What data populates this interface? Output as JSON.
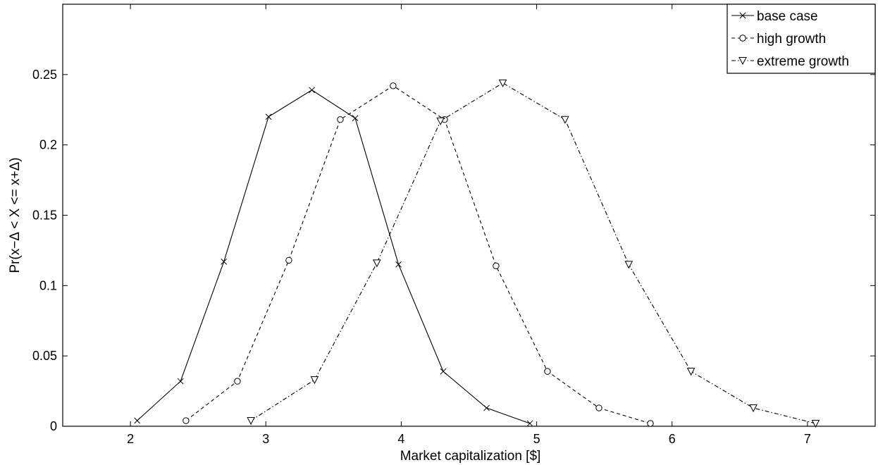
{
  "chart_data": {
    "type": "line",
    "xlabel": "Market capitalization [$]",
    "ylabel": "Pr(x−Δ < X <= x+Δ)",
    "xlim": [
      1.5,
      7.5
    ],
    "ylim": [
      0,
      0.3
    ],
    "xticks": [
      "2",
      "3",
      "4",
      "5",
      "6",
      "7"
    ],
    "yticks": [
      "0",
      "0.05",
      "0.1",
      "0.15",
      "0.2",
      "0.25"
    ],
    "grid": false,
    "legend_position": "top-right",
    "series": [
      {
        "name": "base case",
        "line_style": "solid",
        "marker": "x",
        "color": "#000000",
        "x": [
          2.05,
          2.37,
          2.69,
          3.02,
          3.34,
          3.66,
          3.98,
          4.31,
          4.63,
          4.95
        ],
        "y": [
          0.004,
          0.032,
          0.117,
          0.22,
          0.239,
          0.219,
          0.115,
          0.039,
          0.013,
          0.002
        ]
      },
      {
        "name": "high growth",
        "line_style": "dashed",
        "marker": "circle",
        "color": "#000000",
        "x": [
          2.41,
          2.79,
          3.17,
          3.55,
          3.94,
          4.32,
          4.7,
          5.08,
          5.46,
          5.84
        ],
        "y": [
          0.004,
          0.032,
          0.118,
          0.218,
          0.242,
          0.218,
          0.114,
          0.039,
          0.013,
          0.002
        ]
      },
      {
        "name": "extreme growth",
        "line_style": "dashdot",
        "marker": "triangle-down",
        "color": "#000000",
        "x": [
          2.89,
          3.36,
          3.82,
          4.29,
          4.75,
          5.21,
          5.68,
          6.14,
          6.6,
          7.06
        ],
        "y": [
          0.004,
          0.033,
          0.116,
          0.217,
          0.244,
          0.218,
          0.115,
          0.039,
          0.013,
          0.002
        ]
      }
    ]
  }
}
